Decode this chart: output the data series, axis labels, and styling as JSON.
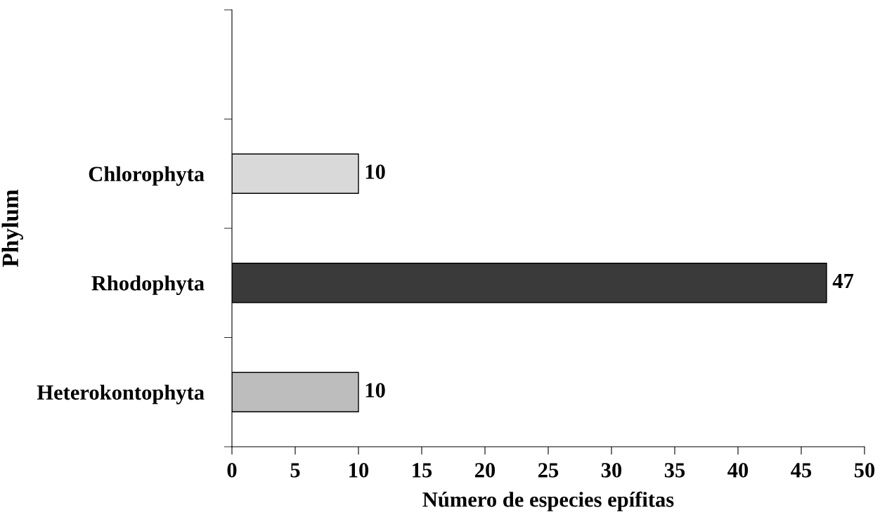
{
  "chart_data": {
    "type": "bar",
    "orientation": "horizontal",
    "categories": [
      null,
      "Chlorophyta",
      "Rhodophyta",
      "Heterokontophyta"
    ],
    "values": [
      null,
      10,
      47,
      10
    ],
    "colors": [
      "#d9d9d9",
      "#d9d9d9",
      "#3a3a3a",
      "#bdbdbd"
    ],
    "xlabel": "Número de especies epífitas",
    "ylabel": "Phylum",
    "xlim": [
      0,
      50
    ],
    "xticks": [
      0,
      5,
      10,
      15,
      20,
      25,
      30,
      35,
      40,
      45,
      50
    ],
    "data_labels": true,
    "grid": false,
    "legend": false
  }
}
